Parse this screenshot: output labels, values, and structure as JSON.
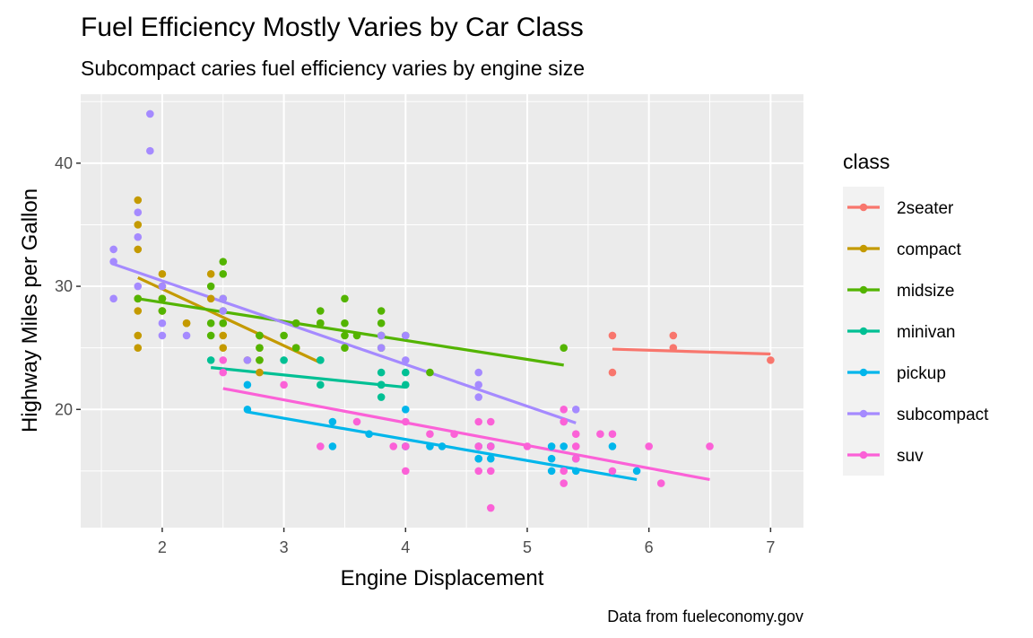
{
  "chart_data": {
    "type": "scatter",
    "title": "Fuel Efficiency Mostly Varies by Car Class",
    "subtitle": "Subcompact caries fuel efficiency varies by engine size",
    "xlabel": "Engine Displacement",
    "ylabel": "Highway Miles per Gallon",
    "caption": "Data from fueleconomy.gov",
    "xlim": [
      1.33,
      7.27
    ],
    "ylim": [
      10.4,
      45.6
    ],
    "x_ticks": [
      2,
      3,
      4,
      5,
      6,
      7
    ],
    "y_ticks": [
      20,
      30,
      40
    ],
    "grid": true,
    "legend": {
      "title": "class",
      "position": "right"
    },
    "series": [
      {
        "name": "2seater",
        "color": "#F8766D",
        "points": [
          [
            5.7,
            26
          ],
          [
            5.7,
            23
          ],
          [
            6.2,
            26
          ],
          [
            6.2,
            25
          ],
          [
            7.0,
            24
          ]
        ],
        "fit": [
          [
            5.7,
            24.9
          ],
          [
            7.0,
            24.5
          ]
        ]
      },
      {
        "name": "compact",
        "color": "#C49A00",
        "points": [
          [
            1.8,
            29
          ],
          [
            1.8,
            29
          ],
          [
            2.0,
            31
          ],
          [
            2.0,
            30
          ],
          [
            2.8,
            26
          ],
          [
            2.8,
            26
          ],
          [
            3.1,
            27
          ],
          [
            1.8,
            26
          ],
          [
            1.8,
            25
          ],
          [
            1.8,
            28
          ],
          [
            2.0,
            28
          ],
          [
            2.8,
            25
          ],
          [
            2.8,
            24
          ],
          [
            3.1,
            25
          ],
          [
            3.1,
            25
          ],
          [
            1.8,
            37
          ],
          [
            1.8,
            35
          ],
          [
            1.8,
            33
          ],
          [
            2.0,
            29
          ],
          [
            2.2,
            27
          ],
          [
            2.4,
            31
          ],
          [
            2.4,
            29
          ],
          [
            2.5,
            27
          ],
          [
            2.5,
            25
          ],
          [
            2.5,
            26
          ],
          [
            3.3,
            27
          ],
          [
            2.8,
            23
          ],
          [
            2.0,
            28
          ],
          [
            2.0,
            29
          ],
          [
            2.2,
            27
          ],
          [
            2.7,
            24
          ]
        ],
        "fit": [
          [
            1.8,
            30.7
          ],
          [
            3.3,
            23.8
          ]
        ]
      },
      {
        "name": "midsize",
        "color": "#53B400",
        "points": [
          [
            1.8,
            29
          ],
          [
            2.0,
            28
          ],
          [
            2.0,
            29
          ],
          [
            2.4,
            27
          ],
          [
            2.4,
            30
          ],
          [
            2.5,
            32
          ],
          [
            2.5,
            31
          ],
          [
            2.5,
            28
          ],
          [
            2.5,
            29
          ],
          [
            2.5,
            27
          ],
          [
            2.8,
            26
          ],
          [
            2.8,
            25
          ],
          [
            3.0,
            26
          ],
          [
            3.1,
            27
          ],
          [
            3.1,
            25
          ],
          [
            3.3,
            28
          ],
          [
            3.3,
            27
          ],
          [
            3.5,
            29
          ],
          [
            3.5,
            27
          ],
          [
            3.5,
            26
          ],
          [
            3.5,
            25
          ],
          [
            3.6,
            26
          ],
          [
            3.8,
            28
          ],
          [
            3.8,
            27
          ],
          [
            3.8,
            26
          ],
          [
            3.8,
            25
          ],
          [
            4.0,
            26
          ],
          [
            4.2,
            23
          ],
          [
            5.3,
            25
          ],
          [
            2.4,
            26
          ],
          [
            2.8,
            24
          ]
        ],
        "fit": [
          [
            1.8,
            29.0
          ],
          [
            5.3,
            23.6
          ]
        ]
      },
      {
        "name": "minivan",
        "color": "#00C094",
        "points": [
          [
            2.4,
            24
          ],
          [
            3.0,
            24
          ],
          [
            3.3,
            24
          ],
          [
            3.3,
            22
          ],
          [
            3.3,
            24
          ],
          [
            3.8,
            23
          ],
          [
            3.8,
            21
          ],
          [
            3.8,
            22
          ],
          [
            4.0,
            23
          ],
          [
            4.0,
            22
          ],
          [
            3.8,
            22
          ]
        ],
        "fit": [
          [
            2.4,
            23.4
          ],
          [
            4.0,
            21.8
          ]
        ]
      },
      {
        "name": "pickup",
        "color": "#00B6EB",
        "points": [
          [
            2.7,
            20
          ],
          [
            2.7,
            22
          ],
          [
            3.4,
            19
          ],
          [
            3.4,
            17
          ],
          [
            3.7,
            18
          ],
          [
            4.0,
            20
          ],
          [
            4.0,
            17
          ],
          [
            4.2,
            17
          ],
          [
            4.6,
            17
          ],
          [
            4.6,
            16
          ],
          [
            4.7,
            17
          ],
          [
            4.7,
            16
          ],
          [
            5.2,
            17
          ],
          [
            5.2,
            16
          ],
          [
            5.3,
            17
          ],
          [
            5.4,
            15
          ],
          [
            5.7,
            17
          ],
          [
            5.9,
            15
          ],
          [
            4.0,
            17
          ],
          [
            4.7,
            17
          ],
          [
            5.2,
            15
          ],
          [
            4.3,
            17
          ],
          [
            4.6,
            16
          ],
          [
            5.4,
            16
          ]
        ],
        "fit": [
          [
            2.7,
            19.8
          ],
          [
            5.9,
            14.3
          ]
        ]
      },
      {
        "name": "subcompact",
        "color": "#A58AFF",
        "points": [
          [
            1.6,
            33
          ],
          [
            1.6,
            32
          ],
          [
            1.6,
            29
          ],
          [
            1.8,
            36
          ],
          [
            1.8,
            34
          ],
          [
            1.9,
            44
          ],
          [
            1.9,
            41
          ],
          [
            2.0,
            27
          ],
          [
            2.0,
            26
          ],
          [
            2.2,
            26
          ],
          [
            2.5,
            29
          ],
          [
            2.5,
            28
          ],
          [
            2.7,
            24
          ],
          [
            3.8,
            26
          ],
          [
            3.8,
            25
          ],
          [
            4.0,
            26
          ],
          [
            4.0,
            24
          ],
          [
            4.6,
            23
          ],
          [
            4.6,
            22
          ],
          [
            4.6,
            21
          ],
          [
            5.4,
            20
          ],
          [
            5.3,
            19
          ],
          [
            1.8,
            30
          ],
          [
            2.0,
            30
          ]
        ],
        "fit": [
          [
            1.6,
            31.8
          ],
          [
            5.4,
            18.9
          ]
        ]
      },
      {
        "name": "suv",
        "color": "#FB61D7",
        "points": [
          [
            2.5,
            24
          ],
          [
            2.5,
            23
          ],
          [
            3.0,
            22
          ],
          [
            3.3,
            17
          ],
          [
            3.6,
            19
          ],
          [
            3.9,
            17
          ],
          [
            4.0,
            19
          ],
          [
            4.0,
            17
          ],
          [
            4.0,
            15
          ],
          [
            4.2,
            18
          ],
          [
            4.4,
            18
          ],
          [
            4.6,
            19
          ],
          [
            4.6,
            15
          ],
          [
            4.7,
            19
          ],
          [
            4.7,
            17
          ],
          [
            4.7,
            15
          ],
          [
            4.7,
            12
          ],
          [
            5.0,
            17
          ],
          [
            5.3,
            20
          ],
          [
            5.3,
            19
          ],
          [
            5.3,
            15
          ],
          [
            5.3,
            14
          ],
          [
            5.4,
            18
          ],
          [
            5.4,
            17
          ],
          [
            5.4,
            16
          ],
          [
            5.6,
            18
          ],
          [
            5.7,
            18
          ],
          [
            5.7,
            15
          ],
          [
            6.0,
            17
          ],
          [
            6.1,
            14
          ],
          [
            6.5,
            17
          ],
          [
            4.6,
            17
          ]
        ],
        "fit": [
          [
            2.5,
            21.7
          ],
          [
            6.5,
            14.3
          ]
        ]
      }
    ]
  }
}
